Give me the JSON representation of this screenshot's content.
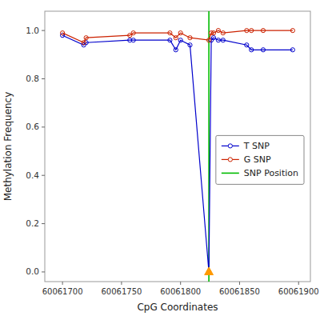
{
  "chart_data": {
    "type": "line",
    "xlabel": "CpG Coordinates",
    "ylabel": "Methylation Frequency",
    "x": [
      60061700,
      60061718,
      60061720,
      60061757,
      60061760,
      60061791,
      60061796,
      60061800,
      60061808,
      60061824,
      60061826,
      60061828,
      60061832,
      60061836,
      60061856,
      60061860,
      60061870,
      60061895
    ],
    "xlim": [
      60061685,
      60061910
    ],
    "ylim": [
      -0.04,
      1.08
    ],
    "xticks": [
      60061700,
      60061750,
      60061800,
      60061850,
      60061900
    ],
    "yticks": [
      {
        "value": 0.0,
        "label": "0.0"
      },
      0.2,
      0.4,
      0.6,
      0.8,
      {
        "value": 1.0,
        "label": "1.0"
      }
    ],
    "grid": false,
    "legend": "right",
    "series": [
      {
        "name": "T SNP",
        "color": "#0000cc",
        "marker": "circle",
        "values": [
          0.98,
          0.94,
          0.95,
          0.96,
          0.96,
          0.96,
          0.92,
          0.96,
          0.94,
          0.0,
          0.96,
          0.97,
          0.96,
          0.96,
          0.94,
          0.92,
          0.92,
          0.92
        ]
      },
      {
        "name": "G SNP",
        "color": "#cc2200",
        "marker": "circle",
        "values": [
          0.99,
          0.95,
          0.97,
          0.98,
          0.99,
          0.99,
          0.97,
          0.99,
          0.97,
          0.96,
          0.99,
          0.99,
          1.0,
          0.99,
          1.0,
          1.0,
          1.0,
          1.0
        ]
      },
      {
        "name": "SNP Position",
        "type": "vline",
        "color": "#00bb00",
        "x": [
          60061824
        ]
      },
      {
        "type": "scatter",
        "marker": "triangle",
        "color": "#ff9900",
        "x": [
          60061824
        ],
        "values": [
          0.0
        ]
      }
    ]
  }
}
